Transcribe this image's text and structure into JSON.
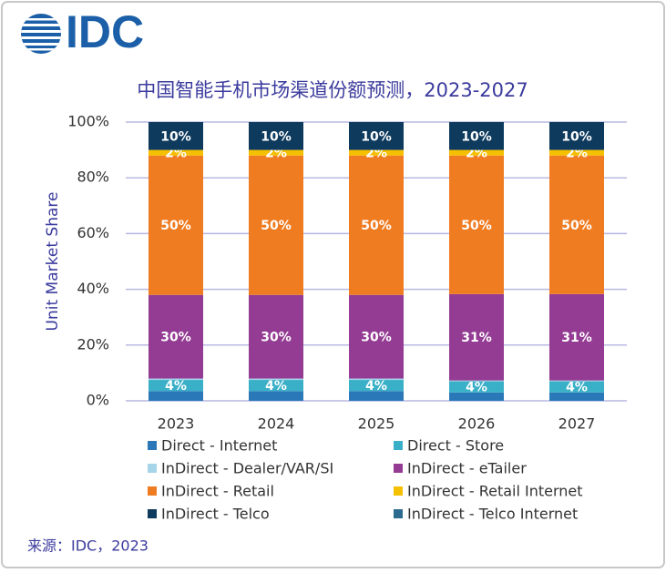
{
  "logo": "IDC",
  "chart_data": {
    "type": "stacked-bar",
    "title": "中国智能手机市场渠道份额预测，2023-2027",
    "y_label": "Unit Market Share",
    "source": "来源：IDC，2023",
    "categories": [
      "2023",
      "2024",
      "2025",
      "2026",
      "2027"
    ],
    "ylim": [
      0,
      100
    ],
    "yticks": [
      {
        "value": 0,
        "label": "0%"
      },
      {
        "value": 20,
        "label": "20%"
      },
      {
        "value": 40,
        "label": "40%"
      },
      {
        "value": 60,
        "label": "60%"
      },
      {
        "value": 80,
        "label": "80%"
      },
      {
        "value": 100,
        "label": "100%"
      }
    ],
    "grid": true,
    "series": [
      {
        "name": "Direct - Internet",
        "color": "#2a78b8",
        "values": [
          3.5,
          3.5,
          3.5,
          3,
          3
        ]
      },
      {
        "name": "Direct - Store",
        "color": "#3ab0c8",
        "values": [
          4,
          4,
          4,
          4,
          4
        ],
        "value_labels": [
          "4%",
          "4%",
          "4%",
          "4%",
          "4%"
        ]
      },
      {
        "name": "InDirect - Dealer/VAR/SI",
        "color": "#a6d4e8",
        "values": [
          0.5,
          0.5,
          0.5,
          0.3,
          0.3
        ]
      },
      {
        "name": "InDirect - eTailer",
        "color": "#943c93",
        "values": [
          30,
          30,
          30,
          31,
          31
        ],
        "value_labels": [
          "30%",
          "30%",
          "30%",
          "31%",
          "31%"
        ]
      },
      {
        "name": "InDirect - Retail",
        "color": "#f07c22",
        "values": [
          50,
          50,
          50,
          49.7,
          49.7
        ],
        "value_labels": [
          "50%",
          "50%",
          "50%",
          "50%",
          "50%"
        ]
      },
      {
        "name": "InDirect - Retail Internet",
        "color": "#f5c000",
        "values": [
          2,
          2,
          2,
          2,
          2
        ],
        "value_labels": [
          "2%",
          "2%",
          "2%",
          "2%",
          "2%"
        ]
      },
      {
        "name": "InDirect - Telco",
        "color": "#0e3a5e",
        "values": [
          10,
          10,
          10,
          10,
          10
        ],
        "value_labels": [
          "10%",
          "10%",
          "10%",
          "10%",
          "10%"
        ]
      },
      {
        "name": "InDirect - Telco Internet",
        "color": "#2d6a8f",
        "values": [
          0,
          0,
          0,
          0,
          0
        ]
      }
    ]
  }
}
